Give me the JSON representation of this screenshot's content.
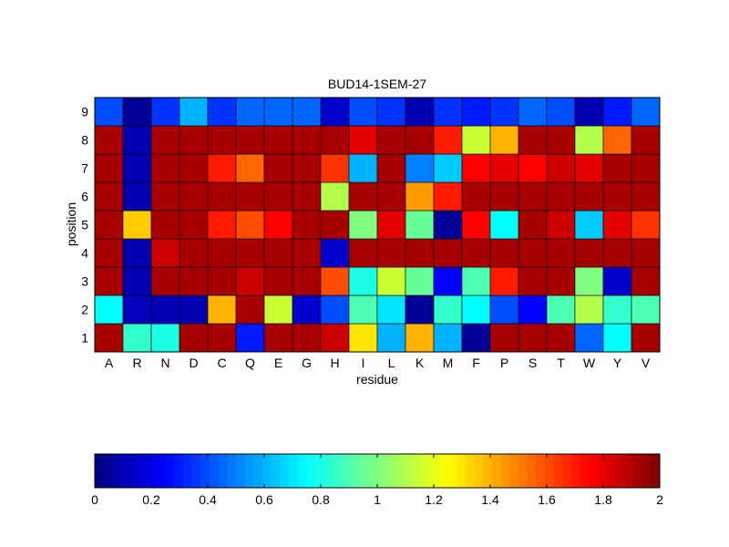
{
  "chart_data": {
    "type": "heatmap",
    "title": "BUD14-1SEM-27",
    "xlabel": "residue",
    "ylabel": "position",
    "x_categories": [
      "A",
      "R",
      "N",
      "D",
      "C",
      "Q",
      "E",
      "G",
      "H",
      "I",
      "L",
      "K",
      "M",
      "F",
      "P",
      "S",
      "T",
      "W",
      "Y",
      "V"
    ],
    "y_categories": [
      "1",
      "2",
      "3",
      "4",
      "5",
      "6",
      "7",
      "8",
      "9"
    ],
    "values": [
      [
        1.92,
        0.85,
        0.8,
        1.92,
        1.92,
        0.3,
        1.92,
        1.92,
        1.85,
        1.3,
        0.6,
        1.4,
        0.6,
        0.05,
        1.92,
        1.92,
        1.92,
        0.45,
        0.75,
        1.92
      ],
      [
        0.75,
        0.12,
        0.1,
        0.1,
        1.4,
        1.92,
        1.15,
        0.15,
        0.4,
        0.9,
        0.7,
        0.05,
        0.85,
        0.75,
        0.4,
        0.25,
        0.9,
        1.1,
        0.85,
        0.9
      ],
      [
        1.92,
        0.1,
        1.92,
        1.92,
        1.92,
        1.85,
        1.92,
        1.92,
        1.6,
        0.8,
        1.15,
        0.95,
        0.25,
        0.9,
        1.7,
        1.92,
        1.92,
        1.0,
        0.15,
        1.92
      ],
      [
        1.92,
        0.1,
        1.85,
        1.92,
        1.92,
        1.92,
        1.92,
        1.92,
        0.15,
        1.92,
        1.92,
        1.92,
        1.92,
        1.92,
        1.92,
        1.92,
        1.92,
        1.92,
        1.92,
        1.92
      ],
      [
        1.92,
        1.35,
        1.92,
        1.92,
        1.7,
        1.6,
        1.75,
        1.92,
        1.92,
        1.0,
        1.8,
        0.95,
        0.05,
        1.75,
        0.75,
        1.92,
        1.85,
        0.65,
        1.8,
        1.65
      ],
      [
        1.92,
        0.1,
        1.92,
        1.92,
        1.92,
        1.92,
        1.92,
        1.92,
        1.1,
        1.92,
        1.92,
        1.45,
        1.7,
        1.92,
        1.92,
        1.92,
        1.92,
        1.92,
        1.92,
        1.92
      ],
      [
        1.92,
        0.1,
        1.92,
        1.92,
        1.7,
        1.55,
        1.92,
        1.92,
        1.65,
        0.6,
        1.92,
        0.5,
        0.65,
        1.75,
        1.8,
        1.75,
        1.85,
        1.8,
        1.92,
        1.92
      ],
      [
        1.92,
        0.1,
        1.92,
        1.92,
        1.92,
        1.92,
        1.92,
        1.92,
        1.92,
        1.8,
        1.92,
        1.92,
        1.7,
        1.15,
        1.4,
        1.92,
        1.92,
        1.1,
        1.55,
        1.92
      ],
      [
        0.4,
        0.05,
        0.35,
        0.6,
        0.35,
        0.45,
        0.45,
        0.45,
        0.15,
        0.4,
        0.35,
        0.1,
        0.35,
        0.3,
        0.35,
        0.45,
        0.4,
        0.1,
        0.3,
        0.45
      ]
    ],
    "colorbar": {
      "min": 0,
      "max": 2,
      "tick_values": [
        0,
        0.2,
        0.4,
        0.6,
        0.8,
        1,
        1.2,
        1.4,
        1.6,
        1.8,
        2
      ],
      "tick_labels": [
        "0",
        "0.2",
        "0.4",
        "0.6",
        "0.8",
        "1",
        "1.2",
        "1.4",
        "1.6",
        "1.8",
        "2"
      ],
      "colormap": "jet"
    },
    "grid": false
  }
}
